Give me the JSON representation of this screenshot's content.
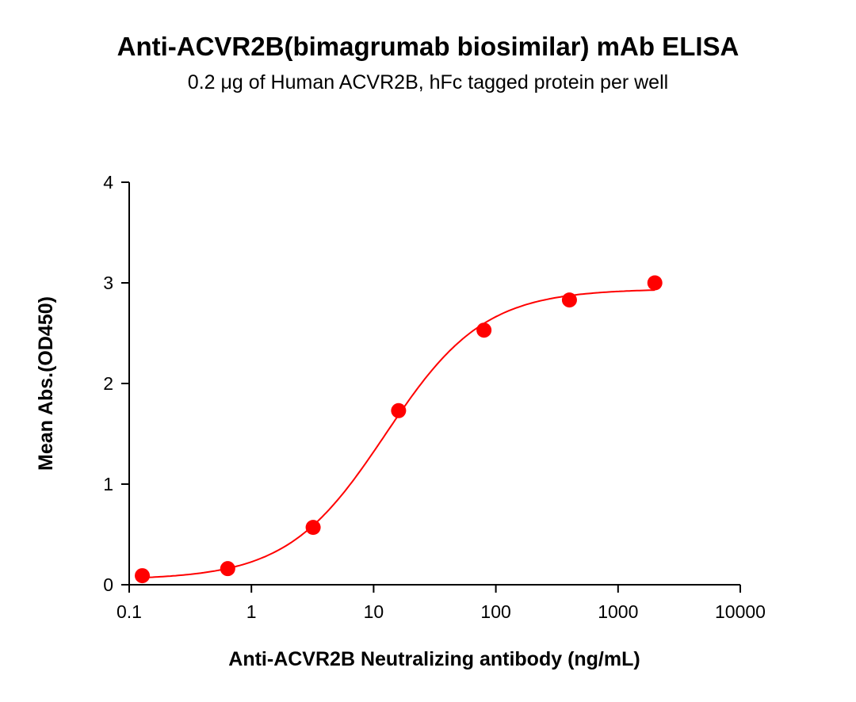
{
  "chart_data": {
    "type": "scatter",
    "title": "Anti-ACVR2B(bimagrumab biosimilar) mAb ELISA",
    "subtitle": "0.2 μg of Human ACVR2B, hFc tagged protein per well",
    "xlabel": "Anti-ACVR2B Neutralizing antibody (ng/mL)",
    "ylabel": "Mean Abs.(OD450)",
    "x_scale": "log",
    "xlim": [
      0.1,
      10000
    ],
    "ylim": [
      0,
      4
    ],
    "x_ticks": [
      "0.1",
      "1",
      "10",
      "100",
      "1000",
      "10000"
    ],
    "y_ticks": [
      "0",
      "1",
      "2",
      "3",
      "4"
    ],
    "grid": false,
    "legend": "none",
    "color": "#ff0000",
    "fit_curve": "sigmoidal (4PL) fit line",
    "series": [
      {
        "x": [
          0.128,
          0.64,
          3.2,
          16,
          80,
          400,
          2000
        ],
        "y": [
          0.09,
          0.16,
          0.57,
          1.73,
          2.53,
          2.83,
          3.0
        ]
      }
    ]
  }
}
